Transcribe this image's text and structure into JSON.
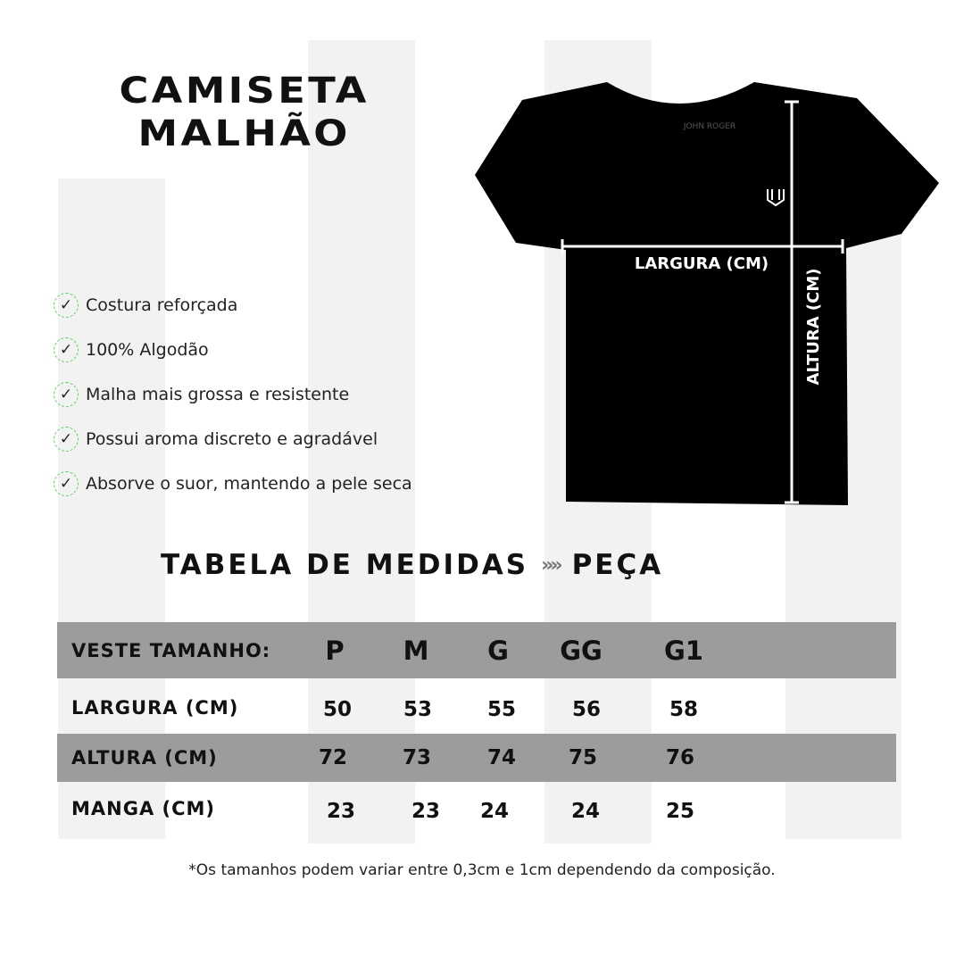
{
  "title": {
    "line1": "CAMISETA",
    "line2": "MALHÃO"
  },
  "features": [
    "Costura reforçada",
    "100% Algodão",
    "Malha mais grossa e resistente",
    "Possui aroma discreto e agradável",
    "Absorve o suor, mantendo a pele seca"
  ],
  "check_icon": "✓",
  "shirt": {
    "color": "#000000",
    "brand": "JOHN ROGER",
    "width_label": "LARGURA (CM)",
    "height_label": "ALTURA (CM)"
  },
  "section": {
    "left": "TABELA DE MEDIDAS",
    "arrows": "»»",
    "right": "PEÇA"
  },
  "table": {
    "header": {
      "label": "VESTE TAMANHO:",
      "sizes": [
        "P",
        "M",
        "G",
        "GG",
        "G1"
      ]
    },
    "rows": [
      {
        "label": "LARGURA (CM)",
        "values": [
          "50",
          "53",
          "55",
          "56",
          "58"
        ]
      },
      {
        "label": "ALTURA (CM)",
        "values": [
          "72",
          "73",
          "74",
          "75",
          "76"
        ]
      },
      {
        "label": "MANGA (CM)",
        "values": [
          "23",
          "23",
          "24",
          "24",
          "25"
        ]
      }
    ],
    "row_gray": "#9c9c9c"
  },
  "note": "*Os tamanhos podem variar entre 0,3cm e 1cm dependendo da composição."
}
